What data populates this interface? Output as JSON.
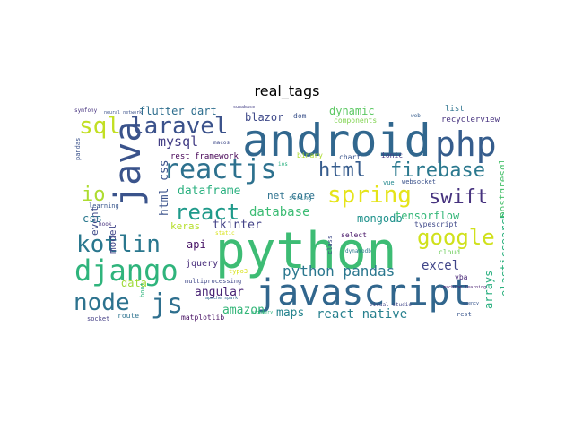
{
  "title": "real_tags",
  "words": [
    {
      "text": "python",
      "color": "#3dbc74"
    },
    {
      "text": "android",
      "color": "#31678e"
    },
    {
      "text": "javascript",
      "color": "#31668d"
    },
    {
      "text": "java",
      "color": "#3a538b"
    },
    {
      "text": "php",
      "color": "#365d8d"
    },
    {
      "text": "django",
      "color": "#2fb47c"
    },
    {
      "text": "reactjs",
      "color": "#2d718e"
    },
    {
      "text": "kotlin",
      "color": "#2a778e"
    },
    {
      "text": "node",
      "color": "#2c728e"
    },
    {
      "text": "js",
      "color": "#2e6f8e"
    },
    {
      "text": "laravel",
      "color": "#3b528b"
    },
    {
      "text": "spring",
      "color": "#e5e419"
    },
    {
      "text": "react",
      "color": "#1f9a8a"
    },
    {
      "text": "google",
      "color": "#d0e11c"
    },
    {
      "text": "firebase",
      "color": "#2a788e"
    },
    {
      "text": "html",
      "color": "#365c8d"
    },
    {
      "text": "swift",
      "color": "#46327e"
    },
    {
      "text": "sql",
      "color": "#c2df23"
    },
    {
      "text": "io",
      "color": "#addc30"
    },
    {
      "text": "python pandas",
      "color": "#2a778e"
    },
    {
      "text": "react native",
      "color": "#27808e"
    },
    {
      "text": "angular",
      "color": "#482374"
    },
    {
      "text": "amazon",
      "color": "#34b679"
    },
    {
      "text": "maps",
      "color": "#25848e"
    },
    {
      "text": "excel",
      "color": "#404588"
    },
    {
      "text": "html css",
      "color": "#3b528b"
    },
    {
      "text": "mysql",
      "color": "#433e85"
    },
    {
      "text": "database",
      "color": "#3dbc74"
    },
    {
      "text": "dataframe",
      "color": "#2ab07f"
    },
    {
      "text": "tkinter",
      "color": "#424186"
    },
    {
      "text": "keras",
      "color": "#b5de2b"
    },
    {
      "text": "api",
      "color": "#471365"
    },
    {
      "text": "blazor",
      "color": "#3e4989"
    },
    {
      "text": "flutter dart",
      "color": "#2e6e8e"
    },
    {
      "text": "dynamic",
      "color": "#5cc863"
    },
    {
      "text": "mongodb",
      "color": "#20928c"
    },
    {
      "text": "tensorflow",
      "color": "#35b779"
    },
    {
      "text": "elasticsearch",
      "color": "#2cb17e"
    },
    {
      "text": "postgresql",
      "color": "#4ac16d"
    },
    {
      "text": "arrays",
      "color": "#29af7f"
    },
    {
      "text": "event",
      "color": "#3e4a89"
    },
    {
      "text": "model",
      "color": "#404588"
    },
    {
      "text": "css",
      "color": "#2a788e"
    },
    {
      "text": "data",
      "color": "#a0da39"
    },
    {
      "text": "jquery",
      "color": "#472c7a"
    },
    {
      "text": "net core",
      "color": "#2c718e"
    },
    {
      "text": "rest framework",
      "color": "#440154"
    },
    {
      "text": "dom",
      "color": "#3b528b"
    },
    {
      "text": "components",
      "color": "#7fd34e"
    },
    {
      "text": "chart",
      "color": "#3a548c"
    },
    {
      "text": "ionic",
      "color": "#453882"
    },
    {
      "text": "binary",
      "color": "#addc30"
    },
    {
      "text": "list",
      "color": "#2c738e"
    },
    {
      "text": "recyclerview",
      "color": "#46327e"
    },
    {
      "text": "web",
      "color": "#365d8d"
    },
    {
      "text": "websocket",
      "color": "#3b528b"
    },
    {
      "text": "typescript",
      "color": "#3f4889"
    },
    {
      "text": "select",
      "color": "#481769"
    },
    {
      "text": "string",
      "color": "#2a788e"
    },
    {
      "text": "cloud",
      "color": "#6ccd5a"
    },
    {
      "text": "vba",
      "color": "#482677"
    },
    {
      "text": "rest",
      "color": "#39568c"
    },
    {
      "text": "class",
      "color": "#3e4a89"
    },
    {
      "text": "vue",
      "color": "#23888e"
    },
    {
      "text": "multiprocessing",
      "color": "#3f4788"
    },
    {
      "text": "matplotlib",
      "color": "#471063"
    },
    {
      "text": "route",
      "color": "#2c728e"
    },
    {
      "text": "socket",
      "color": "#433e85"
    },
    {
      "text": "boot",
      "color": "#2fb47c"
    },
    {
      "text": "typo3",
      "color": "#d8e219"
    },
    {
      "text": "symfony",
      "color": "#46337f"
    },
    {
      "text": "macos",
      "color": "#3e4989"
    },
    {
      "text": "pandas",
      "color": "#3b528b"
    },
    {
      "text": "learning",
      "color": "#39568c"
    },
    {
      "text": "hook",
      "color": "#46327e"
    },
    {
      "text": "neural network",
      "color": "#3b528b"
    },
    {
      "text": "ios",
      "color": "#2ab07f"
    },
    {
      "text": "static",
      "color": "#d8e219"
    },
    {
      "text": "visual studio",
      "color": "#404588"
    },
    {
      "text": "machine learning",
      "color": "#481f70"
    },
    {
      "text": "dynamodb",
      "color": "#2a788e"
    },
    {
      "text": "apache spark",
      "color": "#31688e"
    },
    {
      "text": "bigquery",
      "color": "#2fb47c"
    },
    {
      "text": "supabase",
      "color": "#433e85"
    },
    {
      "text": "opencv",
      "color": "#39568c"
    }
  ]
}
